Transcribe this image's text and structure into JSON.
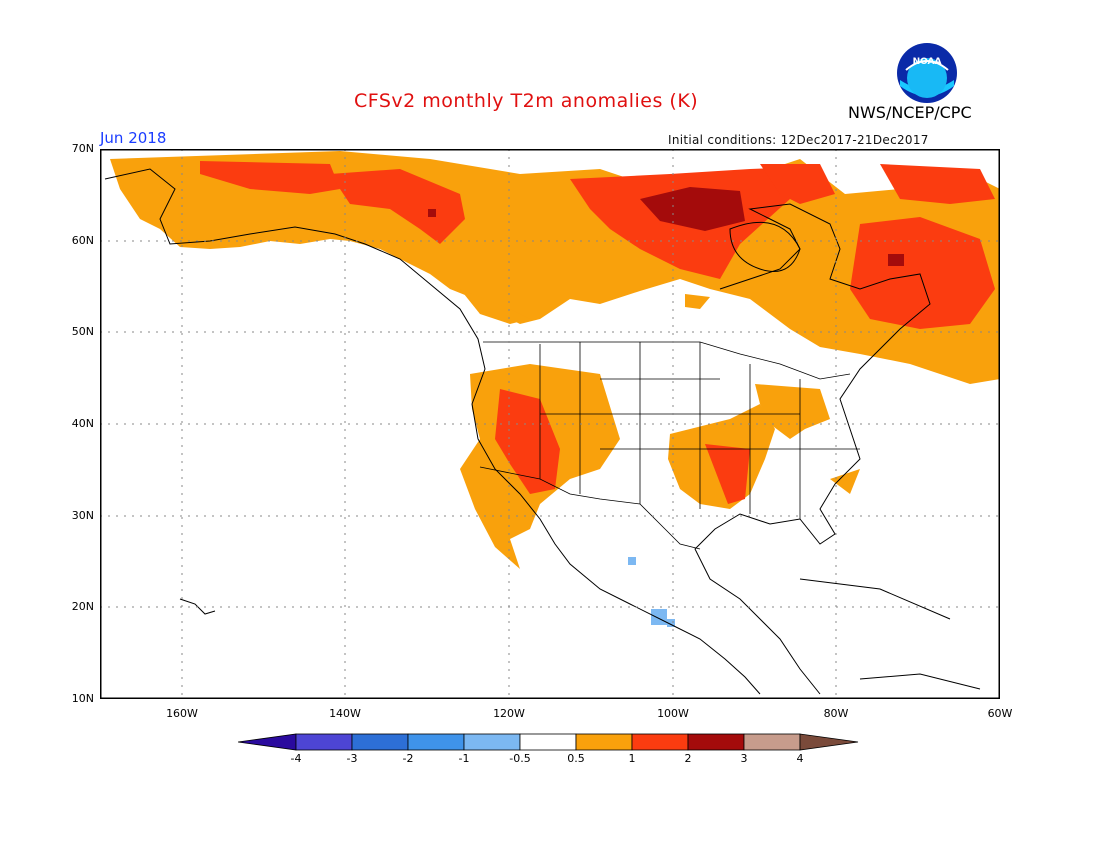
{
  "title": "CFSv2 monthly T2m anomalies (K)",
  "agency": "NWS/NCEP/CPC",
  "logo_text": "NOAA",
  "month": "Jun 2018",
  "initial_conditions": "Initial conditions: 12Dec2017-21Dec2017",
  "lat_labels": [
    "70N",
    "60N",
    "50N",
    "40N",
    "30N",
    "20N",
    "10N"
  ],
  "lon_labels": [
    "160W",
    "140W",
    "120W",
    "100W",
    "80W",
    "60W"
  ],
  "colorbar": {
    "labels": [
      "-4",
      "-3",
      "-2",
      "-1",
      "-0.5",
      "0.5",
      "1",
      "2",
      "3",
      "4"
    ],
    "colors": [
      "#2a0a9e",
      "#4d45d4",
      "#2d6fd6",
      "#3f93ea",
      "#7cb8f2",
      "#ffffff",
      "#f9a10c",
      "#fb3c10",
      "#a40b0b",
      "#c79c8c",
      "#7a4a3a"
    ]
  },
  "map_data": {
    "extent": {
      "lon": [
        -171,
        -60
      ],
      "lat": [
        10,
        70
      ]
    },
    "regions": [
      {
        "name": "alaska-yukon",
        "level": "0.5-1",
        "color": "#f9a10c"
      },
      {
        "name": "canada-north",
        "level": "0.5-1",
        "color": "#f9a10c"
      },
      {
        "name": "hudson-bay-west",
        "level": "1-2",
        "color": "#fb3c10"
      },
      {
        "name": "hudson-bay-core",
        "level": "2-3",
        "color": "#a40b0b"
      },
      {
        "name": "quebec-labrador",
        "level": "1-2",
        "color": "#fb3c10"
      },
      {
        "name": "us-southwest",
        "level": "1-2",
        "color": "#fb3c10"
      },
      {
        "name": "southern-plains",
        "level": "0.5-1",
        "color": "#f9a10c"
      },
      {
        "name": "central-mexico",
        "level": "-1--0.5",
        "color": "#7cb8f2"
      }
    ]
  }
}
